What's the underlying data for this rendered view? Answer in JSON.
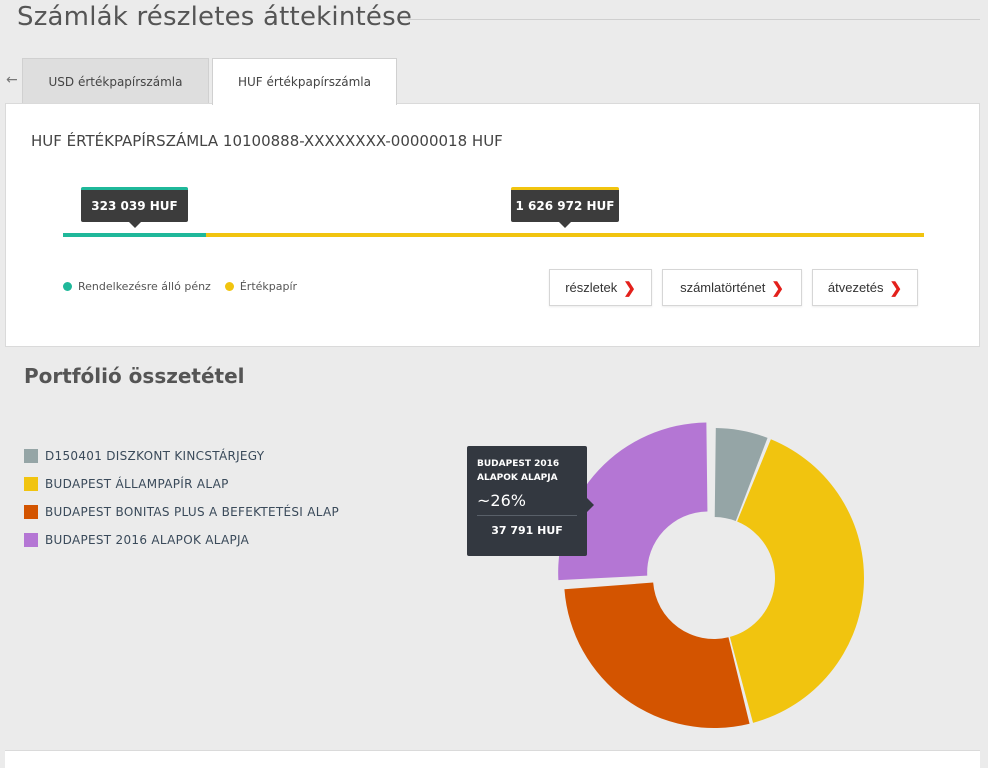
{
  "page": {
    "title": "Számlák részletes áttekintése"
  },
  "tabs": [
    {
      "label": "USD értékpapírszámla",
      "active": false
    },
    {
      "label": "HUF értékpapírszámla",
      "active": true
    }
  ],
  "account": {
    "title": "HUF ÉRTÉKPAPÍRSZÁMLA 10100888-XXXXXXXX-00000018 HUF",
    "cash_label": "323 039 HUF",
    "securities_label": "1 626 972 HUF",
    "cash_value": 323039,
    "securities_value": 1626972,
    "colors": {
      "cash": "#1fb89a",
      "securities": "#f1c40f"
    },
    "legend": [
      {
        "label": "Rendelkezésre álló pénz",
        "color": "#1fb89a"
      },
      {
        "label": "Értékpapír",
        "color": "#f1c40f"
      }
    ],
    "buttons": [
      {
        "label": "részletek"
      },
      {
        "label": "számlatörténet"
      },
      {
        "label": "átvezetés"
      }
    ]
  },
  "portfolio": {
    "title": "Portfólió összetétel",
    "tooltip": {
      "label_line1": "BUDAPEST 2016",
      "label_line2": "ALAPOK ALAPJA",
      "percent": "~26%",
      "value": "37 791 HUF"
    }
  },
  "chart_data": {
    "type": "pie",
    "categories": [
      "D150401 DISZKONT KINCSTÁRJEGY",
      "BUDAPEST ÁLLAMPAPÍR ALAP",
      "BUDAPEST BONITAS PLUS A BEFEKTETÉSI ALAP",
      "BUDAPEST 2016 ALAPOK ALAPJA"
    ],
    "values": [
      6,
      40,
      28,
      26
    ],
    "colors": [
      "#95a5a6",
      "#f1c40f",
      "#d35400",
      "#b476d4"
    ],
    "legend_position": "left"
  }
}
